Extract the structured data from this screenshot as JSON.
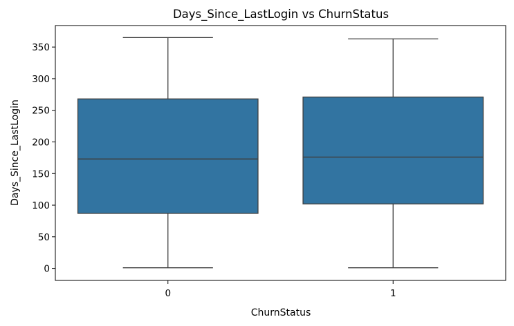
{
  "chart_data": {
    "type": "box",
    "title": "Days_Since_LastLogin vs ChurnStatus",
    "xlabel": "ChurnStatus",
    "ylabel": "Days_Since_LastLogin",
    "categories": [
      "0",
      "1"
    ],
    "boxes": [
      {
        "category": "0",
        "min": 1,
        "q1": 87,
        "median": 173,
        "q3": 268,
        "max": 365
      },
      {
        "category": "1",
        "min": 1,
        "q1": 102,
        "median": 176,
        "q3": 271,
        "max": 363
      }
    ],
    "ylim": [
      -19,
      384
    ],
    "yticks": [
      0,
      50,
      100,
      150,
      200,
      250,
      300,
      350
    ],
    "grid": false,
    "colors": {
      "box_fill": "#3274a1",
      "line": "#3f3f3f",
      "axis": "#000000"
    }
  }
}
